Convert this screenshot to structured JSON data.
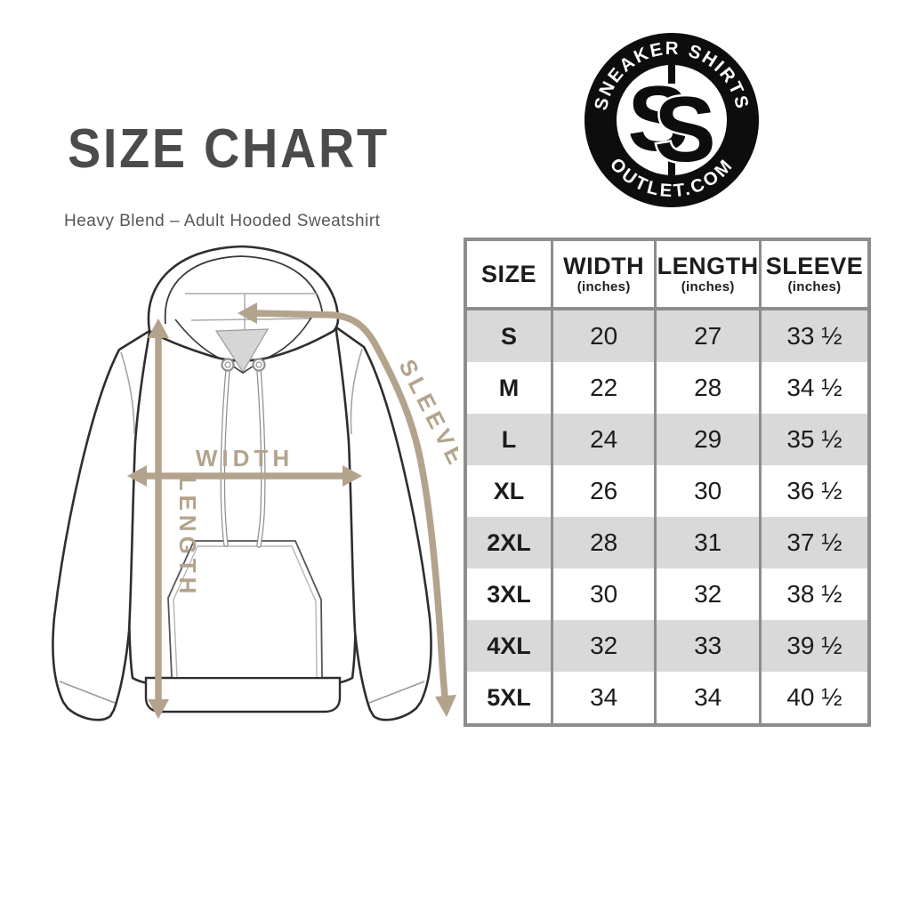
{
  "header": {
    "title": "SIZE CHART",
    "subtitle": "Heavy Blend – Adult Hooded Sweatshirt"
  },
  "logo": {
    "top_text": "SNEAKER SHIRTS",
    "bottom_text": "OUTLET.COM",
    "monogram_letters": [
      "S",
      "S"
    ]
  },
  "diagram": {
    "garment": "hooded sweatshirt",
    "labels": {
      "width": "WIDTH",
      "length": "LENGTH",
      "sleeve": "SLEEVE"
    }
  },
  "table": {
    "columns": [
      {
        "label": "SIZE",
        "sub": ""
      },
      {
        "label": "WIDTH",
        "sub": "(inches)"
      },
      {
        "label": "LENGTH",
        "sub": "(inches)"
      },
      {
        "label": "SLEEVE",
        "sub": "(inches)"
      }
    ],
    "rows": [
      {
        "size": "S",
        "width": "20",
        "length": "27",
        "sleeve": "33 ½"
      },
      {
        "size": "M",
        "width": "22",
        "length": "28",
        "sleeve": "34 ½"
      },
      {
        "size": "L",
        "width": "24",
        "length": "29",
        "sleeve": "35 ½"
      },
      {
        "size": "XL",
        "width": "26",
        "length": "30",
        "sleeve": "36 ½"
      },
      {
        "size": "2XL",
        "width": "28",
        "length": "31",
        "sleeve": "37 ½"
      },
      {
        "size": "3XL",
        "width": "30",
        "length": "32",
        "sleeve": "38 ½"
      },
      {
        "size": "4XL",
        "width": "32",
        "length": "33",
        "sleeve": "39 ½"
      },
      {
        "size": "5XL",
        "width": "34",
        "length": "34",
        "sleeve": "40 ½"
      }
    ]
  },
  "chart_data": {
    "type": "table",
    "columns": [
      "SIZE",
      "WIDTH (inches)",
      "LENGTH (inches)",
      "SLEEVE (inches)"
    ],
    "rows": [
      [
        "S",
        20,
        27,
        33.5
      ],
      [
        "M",
        22,
        28,
        34.5
      ],
      [
        "L",
        24,
        29,
        35.5
      ],
      [
        "XL",
        26,
        30,
        36.5
      ],
      [
        "2XL",
        28,
        31,
        37.5
      ],
      [
        "3XL",
        30,
        32,
        38.5
      ],
      [
        "4XL",
        32,
        33,
        39.5
      ],
      [
        "5XL",
        34,
        34,
        40.5
      ]
    ],
    "title": "SIZE CHART"
  },
  "colors": {
    "accent_tan": "#b3a38d",
    "title_gray": "#4b4b4b",
    "row_gray": "#d9d9d9",
    "border_gray": "#8d8d8d",
    "logo_black": "#0d0d0d"
  }
}
